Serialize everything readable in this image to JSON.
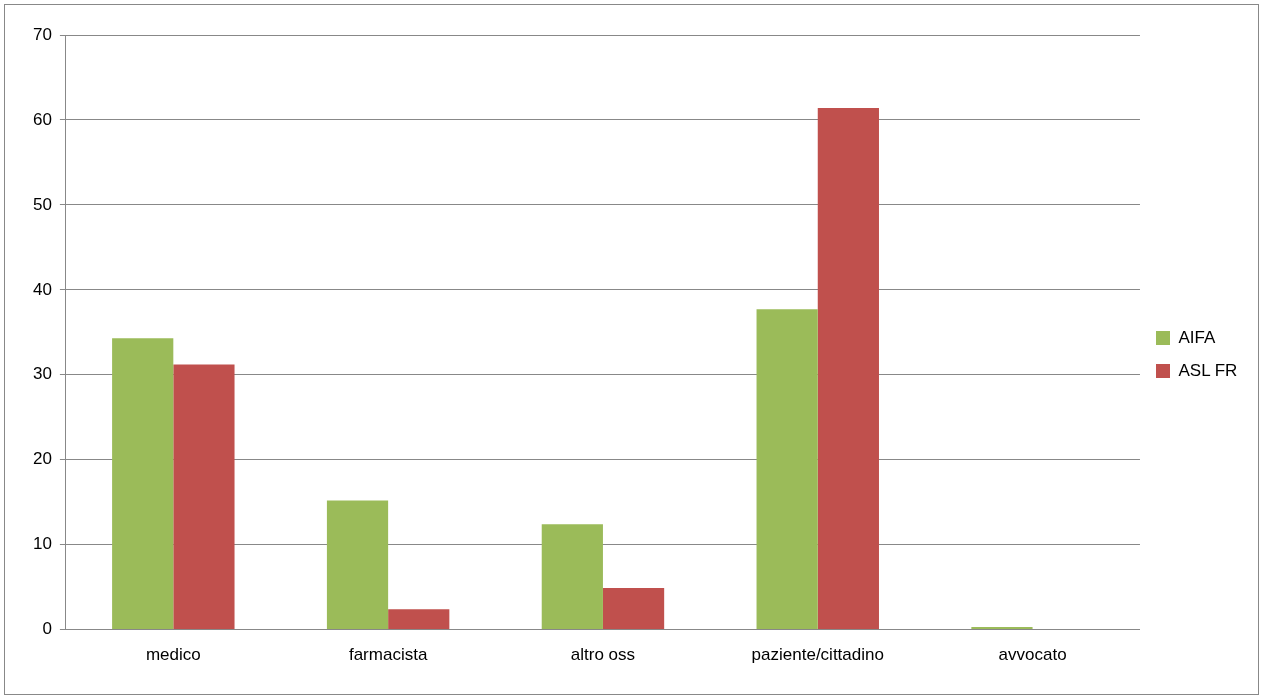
{
  "chart_data": {
    "type": "bar",
    "categories": [
      "medico",
      "farmacista",
      "altro oss",
      "paziente/cittadino",
      "avvocato"
    ],
    "series": [
      {
        "name": "AIFA",
        "color": "#9bbb59",
        "values": [
          34.3,
          15.2,
          12.4,
          37.7,
          0.3
        ]
      },
      {
        "name": "ASL FR",
        "color": "#c0504d",
        "values": [
          31.2,
          2.4,
          4.9,
          61.4,
          0
        ]
      }
    ],
    "ylim": [
      0,
      70
    ],
    "yticks": [
      0,
      10,
      20,
      30,
      40,
      50,
      60,
      70
    ],
    "grid": "y",
    "legend": "right"
  }
}
